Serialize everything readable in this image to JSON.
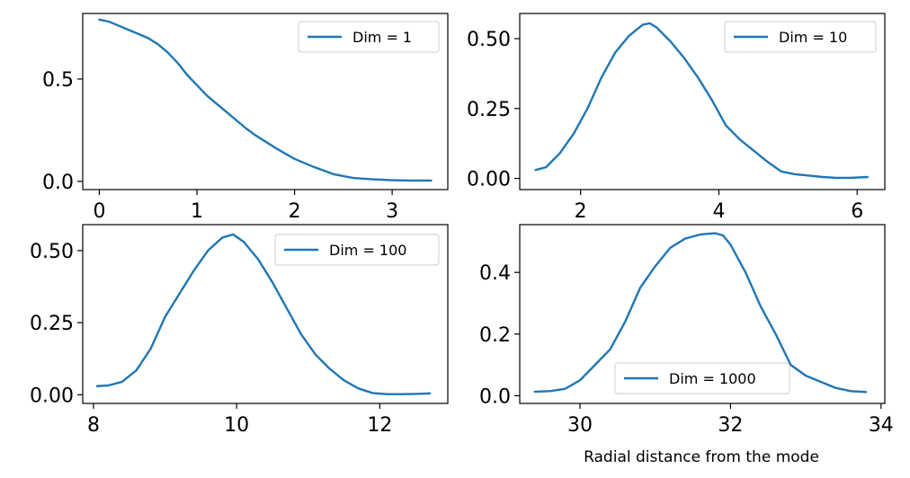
{
  "figure": {
    "xlabel": "Radial distance from the mode"
  },
  "colors": {
    "line": "#1f77b4",
    "axes": "#000000",
    "legend_border": "#cccccc",
    "background": "#ffffff"
  },
  "chart_data": [
    {
      "type": "line",
      "legend_location": "upper-right",
      "grid": false,
      "xlim": [
        -0.17,
        3.57
      ],
      "ylim": [
        -0.04,
        0.82
      ],
      "xticks": [
        {
          "v": 0,
          "label": "0"
        },
        {
          "v": 1,
          "label": "1"
        },
        {
          "v": 2,
          "label": "2"
        },
        {
          "v": 3,
          "label": "3"
        }
      ],
      "yticks": [
        {
          "v": 0.0,
          "label": "0.0"
        },
        {
          "v": 0.5,
          "label": "0.5"
        }
      ],
      "series": [
        {
          "name": "Dim = 1",
          "x": [
            0.0,
            0.1,
            0.2,
            0.3,
            0.4,
            0.5,
            0.6,
            0.7,
            0.8,
            0.9,
            1.0,
            1.1,
            1.2,
            1.3,
            1.4,
            1.5,
            1.6,
            1.7,
            1.8,
            1.9,
            2.0,
            2.2,
            2.4,
            2.6,
            2.8,
            3.0,
            3.2,
            3.4
          ],
          "y": [
            0.79,
            0.78,
            0.76,
            0.74,
            0.72,
            0.7,
            0.67,
            0.63,
            0.58,
            0.52,
            0.47,
            0.42,
            0.38,
            0.34,
            0.3,
            0.26,
            0.225,
            0.195,
            0.165,
            0.137,
            0.11,
            0.07,
            0.035,
            0.017,
            0.01,
            0.006,
            0.004,
            0.004
          ]
        }
      ]
    },
    {
      "type": "line",
      "legend_location": "upper-right",
      "grid": false,
      "xlim": [
        1.12,
        6.4
      ],
      "ylim": [
        -0.04,
        0.59
      ],
      "xticks": [
        {
          "v": 2,
          "label": "2"
        },
        {
          "v": 4,
          "label": "4"
        },
        {
          "v": 6,
          "label": "6"
        }
      ],
      "yticks": [
        {
          "v": 0.0,
          "label": "0.00"
        },
        {
          "v": 0.25,
          "label": "0.25"
        },
        {
          "v": 0.5,
          "label": "0.50"
        }
      ],
      "series": [
        {
          "name": "Dim = 10",
          "x": [
            1.35,
            1.5,
            1.7,
            1.9,
            2.1,
            2.3,
            2.5,
            2.7,
            2.9,
            3.0,
            3.1,
            3.3,
            3.5,
            3.7,
            3.9,
            4.1,
            4.3,
            4.5,
            4.7,
            4.9,
            5.1,
            5.3,
            5.5,
            5.7,
            5.9,
            6.15
          ],
          "y": [
            0.03,
            0.04,
            0.09,
            0.16,
            0.25,
            0.36,
            0.45,
            0.51,
            0.55,
            0.555,
            0.54,
            0.49,
            0.43,
            0.36,
            0.28,
            0.19,
            0.14,
            0.1,
            0.06,
            0.025,
            0.015,
            0.01,
            0.005,
            0.002,
            0.002,
            0.005
          ]
        }
      ]
    },
    {
      "type": "line",
      "legend_location": "upper-right",
      "grid": false,
      "xlim": [
        7.85,
        12.95
      ],
      "ylim": [
        -0.03,
        0.59
      ],
      "xticks": [
        {
          "v": 8,
          "label": "8"
        },
        {
          "v": 10,
          "label": "10"
        },
        {
          "v": 12,
          "label": "12"
        }
      ],
      "yticks": [
        {
          "v": 0.0,
          "label": "0.00"
        },
        {
          "v": 0.25,
          "label": "0.25"
        },
        {
          "v": 0.5,
          "label": "0.50"
        }
      ],
      "series": [
        {
          "name": "Dim = 100",
          "x": [
            8.05,
            8.2,
            8.4,
            8.6,
            8.8,
            9.0,
            9.2,
            9.4,
            9.6,
            9.8,
            9.95,
            10.1,
            10.3,
            10.5,
            10.7,
            10.9,
            11.1,
            11.3,
            11.5,
            11.7,
            11.9,
            12.1,
            12.3,
            12.5,
            12.7
          ],
          "y": [
            0.03,
            0.032,
            0.045,
            0.085,
            0.16,
            0.27,
            0.35,
            0.43,
            0.5,
            0.545,
            0.556,
            0.53,
            0.47,
            0.39,
            0.3,
            0.21,
            0.14,
            0.09,
            0.05,
            0.022,
            0.006,
            0.002,
            0.002,
            0.003,
            0.005
          ]
        }
      ]
    },
    {
      "type": "line",
      "legend_location": "lower-center",
      "grid": false,
      "xlim": [
        29.2,
        34.05
      ],
      "ylim": [
        -0.025,
        0.555
      ],
      "xticks": [
        {
          "v": 30,
          "label": "30"
        },
        {
          "v": 32,
          "label": "32"
        },
        {
          "v": 34,
          "label": "34"
        }
      ],
      "yticks": [
        {
          "v": 0.0,
          "label": "0.0"
        },
        {
          "v": 0.2,
          "label": "0.2"
        },
        {
          "v": 0.4,
          "label": "0.4"
        }
      ],
      "series": [
        {
          "name": "Dim = 1000",
          "x": [
            29.4,
            29.6,
            29.8,
            30.0,
            30.2,
            30.4,
            30.6,
            30.8,
            31.0,
            31.2,
            31.4,
            31.6,
            31.8,
            31.9,
            32.0,
            32.2,
            32.4,
            32.6,
            32.8,
            33.0,
            33.2,
            33.4,
            33.6,
            33.8
          ],
          "y": [
            0.013,
            0.015,
            0.022,
            0.05,
            0.1,
            0.15,
            0.24,
            0.35,
            0.42,
            0.48,
            0.51,
            0.523,
            0.527,
            0.52,
            0.49,
            0.4,
            0.29,
            0.2,
            0.1,
            0.065,
            0.045,
            0.025,
            0.015,
            0.012
          ]
        }
      ]
    }
  ]
}
